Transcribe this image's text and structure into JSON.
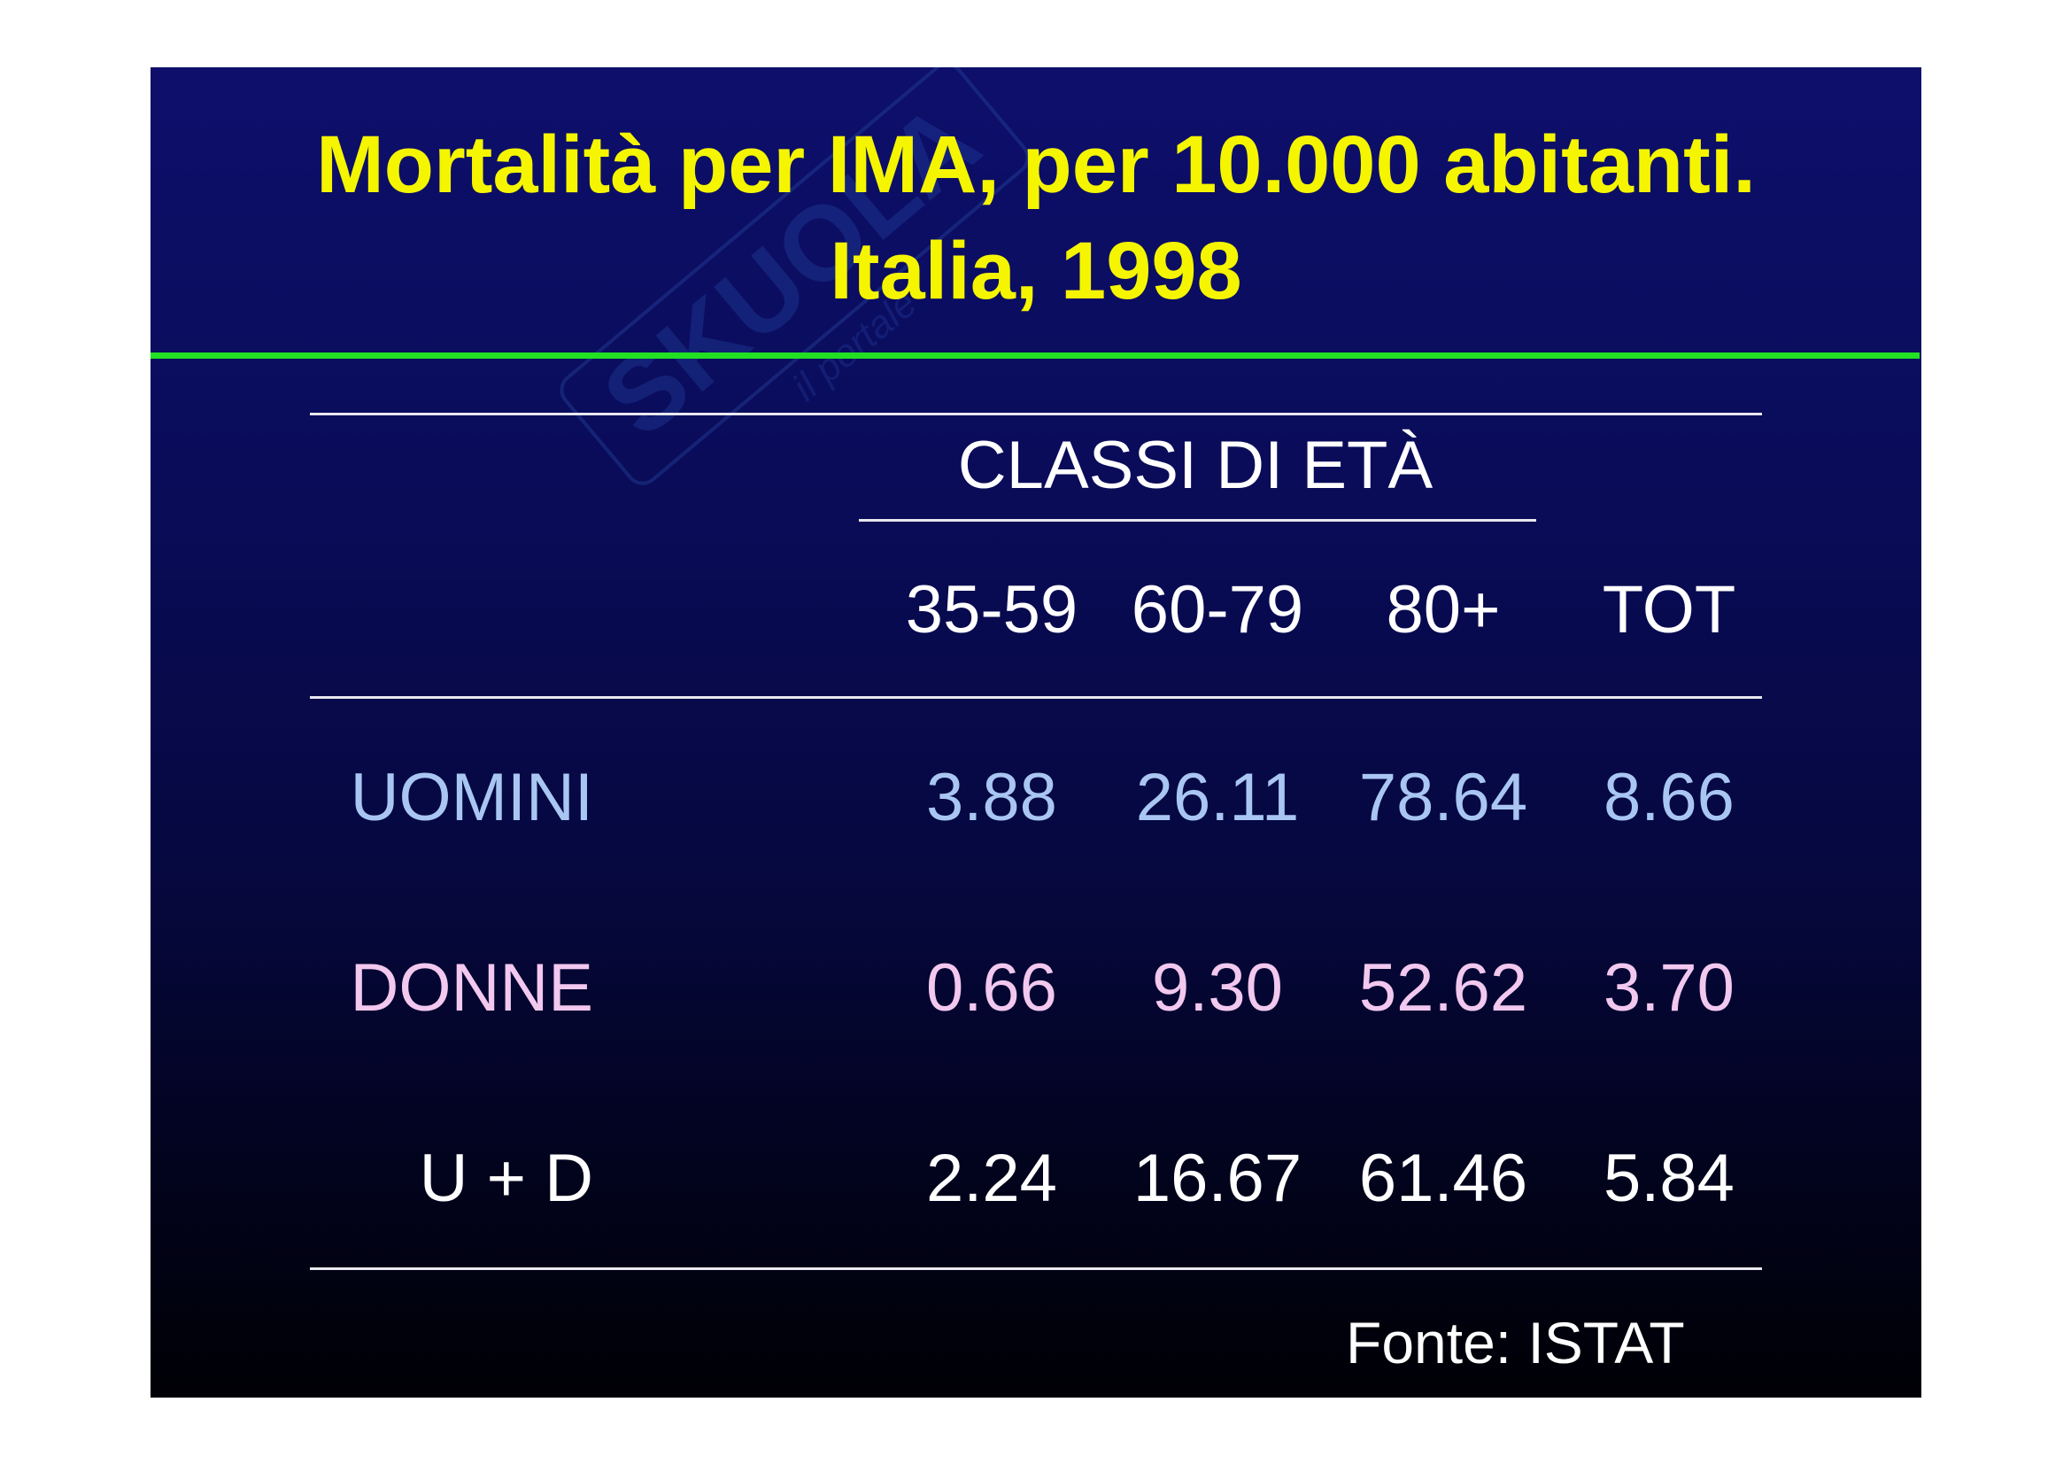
{
  "title": {
    "line1": "Mortalità per IMA, per 10.000 abitanti.",
    "line2": "Italia, 1998"
  },
  "table": {
    "group_header": "CLASSI DI ETÀ",
    "columns": [
      "35-59",
      "60-79",
      "80+",
      "TOT"
    ],
    "rows": [
      {
        "label": "UOMINI",
        "values": [
          "3.88",
          "26.11",
          "78.64",
          "8.66"
        ],
        "color": "#a9c6f2"
      },
      {
        "label": "DONNE",
        "values": [
          "0.66",
          "9.30",
          "52.62",
          "3.70"
        ],
        "color": "#f2c8ef"
      },
      {
        "label": "U + D",
        "values": [
          "2.24",
          "16.67",
          "61.46",
          "5.84"
        ],
        "color": "#ffffff"
      }
    ]
  },
  "source": "Fonte: ISTAT",
  "colors": {
    "title": "#f5f500",
    "accent_rule": "#22e022",
    "background_top": "#0d0f6b",
    "background_bottom": "#000005"
  }
}
